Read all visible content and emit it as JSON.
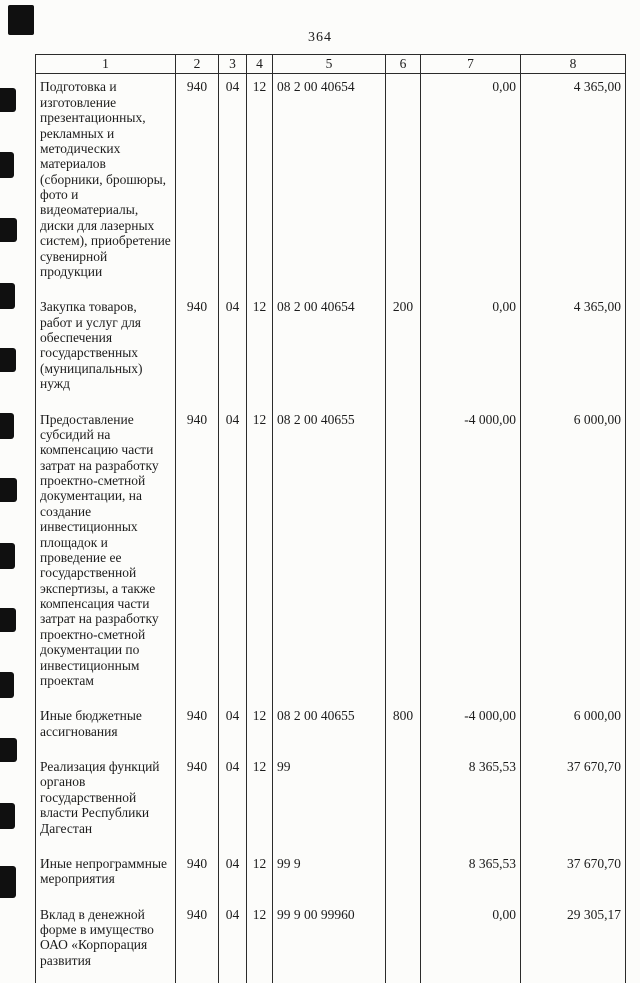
{
  "page": {
    "number": "364"
  },
  "table": {
    "headers": [
      "1",
      "2",
      "3",
      "4",
      "5",
      "6",
      "7",
      "8"
    ],
    "rows": [
      [
        "Подготовка и изготовление презентационных, рекламных и методических материалов (сборники, брошюры, фото и видеоматериалы, диски для лазерных систем), приобретение сувенирной продукции",
        "940",
        "04",
        "12",
        "08 2 00 40654",
        "",
        "0,00",
        "4 365,00"
      ],
      [
        "Закупка товаров, работ и услуг для обеспечения государственных (муниципальных) нужд",
        "940",
        "04",
        "12",
        "08 2 00 40654",
        "200",
        "0,00",
        "4 365,00"
      ],
      [
        "Предоставление субсидий на компенсацию части затрат на разработку проектно-сметной документации, на создание инвестиционных площадок и проведение ее государственной экспертизы, а также компенсация части затрат на разработку проектно-сметной документации по инвестиционным проектам",
        "940",
        "04",
        "12",
        "08 2 00 40655",
        "",
        "-4 000,00",
        "6 000,00"
      ],
      [
        "Иные бюджетные ассигнования",
        "940",
        "04",
        "12",
        "08 2 00 40655",
        "800",
        "-4 000,00",
        "6 000,00"
      ],
      [
        "Реализация функций органов государственной власти Республики Дагестан",
        "940",
        "04",
        "12",
        "99",
        "",
        "8 365,53",
        "37 670,70"
      ],
      [
        "Иные непрограммные мероприятия",
        "940",
        "04",
        "12",
        "99 9",
        "",
        "8 365,53",
        "37 670,70"
      ],
      [
        "Вклад в денежной форме в имущество ОАО «Корпорация развития",
        "940",
        "04",
        "12",
        "99 9 00 99960",
        "",
        "0,00",
        "29 305,17"
      ]
    ]
  }
}
